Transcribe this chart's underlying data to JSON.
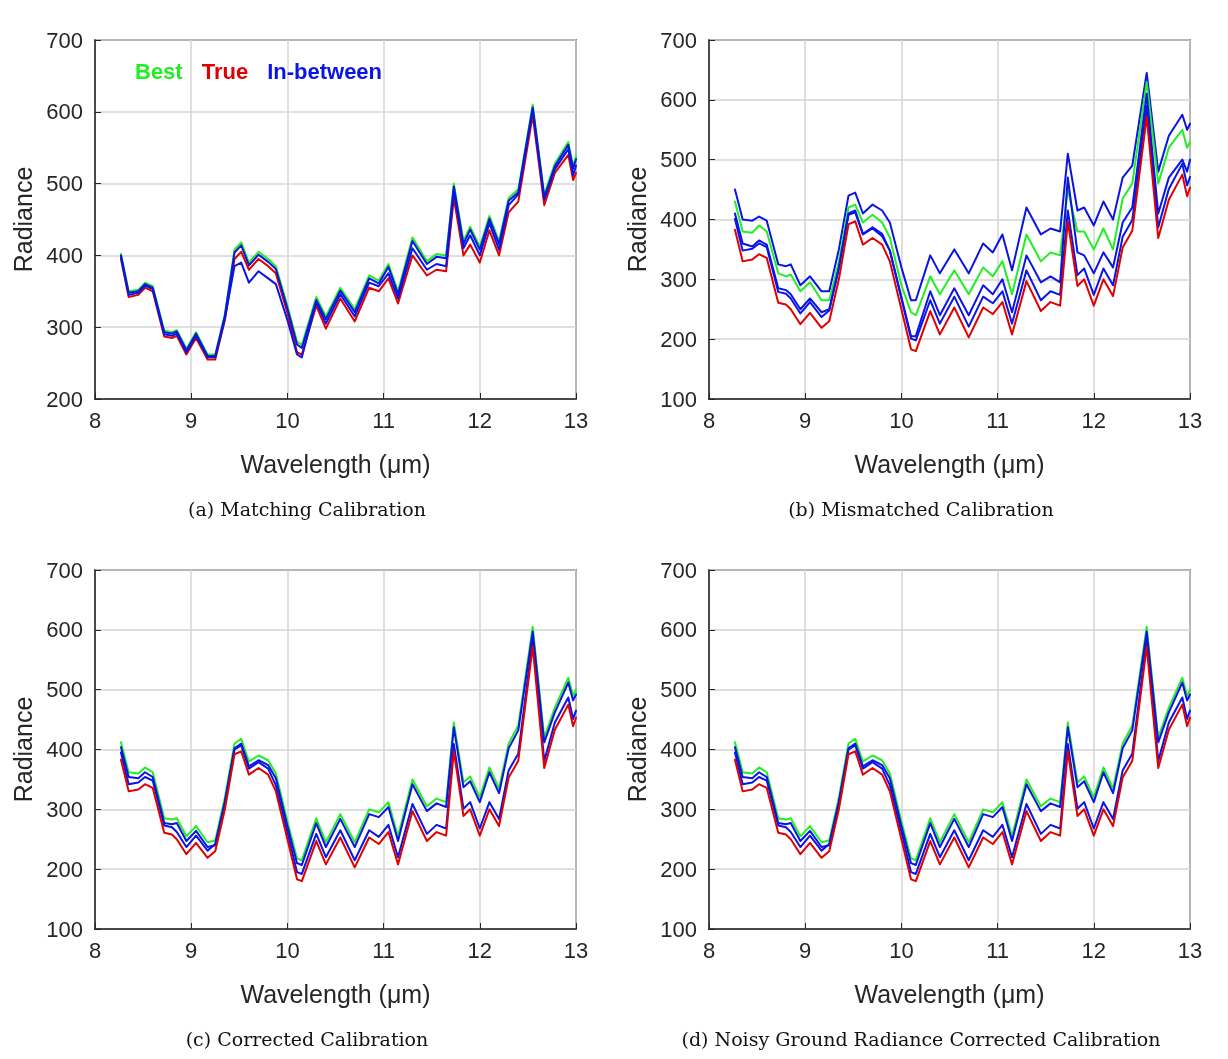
{
  "chart_data": [
    {
      "type": "line",
      "title": "(a) Matching Calibration",
      "xlabel": "Wavelength (μm)",
      "ylabel": "Radiance",
      "xlim": [
        8,
        13
      ],
      "xticks": [
        8,
        9,
        10,
        11,
        12,
        13
      ],
      "ylim": [
        200,
        700
      ],
      "yticks": [
        200,
        300,
        400,
        500,
        600,
        700
      ],
      "grid": true,
      "legend": "top left",
      "x": [
        8.27,
        8.35,
        8.45,
        8.52,
        8.6,
        8.72,
        8.8,
        8.85,
        8.95,
        9.05,
        9.17,
        9.25,
        9.35,
        9.45,
        9.52,
        9.6,
        9.7,
        9.8,
        9.88,
        10.0,
        10.1,
        10.15,
        10.3,
        10.4,
        10.55,
        10.7,
        10.85,
        10.95,
        11.05,
        11.15,
        11.3,
        11.45,
        11.55,
        11.65,
        11.73,
        11.83,
        11.9,
        12.0,
        12.1,
        12.2,
        12.3,
        12.4,
        12.55,
        12.67,
        12.78,
        12.92,
        12.97,
        13.0
      ],
      "series": [
        {
          "name": "Best",
          "color": "#22ee22",
          "values": [
            402,
            350,
            352,
            362,
            357,
            295,
            293,
            296,
            270,
            293,
            262,
            262,
            318,
            408,
            418,
            390,
            405,
            395,
            385,
            330,
            280,
            275,
            342,
            315,
            355,
            325,
            372,
            365,
            388,
            350,
            425,
            392,
            402,
            400,
            500,
            420,
            440,
            412,
            455,
            420,
            480,
            492,
            610,
            485,
            528,
            558,
            525,
            538
          ]
        },
        {
          "name": "True",
          "color": "#e00000",
          "values": [
            395,
            342,
            345,
            355,
            350,
            287,
            285,
            288,
            262,
            285,
            255,
            255,
            310,
            395,
            405,
            380,
            395,
            385,
            375,
            320,
            265,
            262,
            330,
            298,
            340,
            308,
            355,
            350,
            368,
            333,
            400,
            372,
            380,
            378,
            480,
            400,
            415,
            390,
            435,
            400,
            460,
            475,
            595,
            470,
            515,
            540,
            505,
            515
          ]
        },
        {
          "name": "In-between",
          "color": "#0a14e6",
          "values": [
            398,
            345,
            348,
            358,
            353,
            290,
            288,
            291,
            265,
            288,
            258,
            258,
            312,
            385,
            390,
            362,
            378,
            368,
            360,
            310,
            262,
            258,
            335,
            305,
            346,
            315,
            362,
            357,
            375,
            340,
            410,
            380,
            388,
            385,
            490,
            410,
            428,
            400,
            445,
            408,
            470,
            485,
            603,
            478,
            520,
            548,
            512,
            525
          ]
        },
        {
          "color": "#0a14e6",
          "values": [
            400,
            348,
            350,
            360,
            355,
            293,
            291,
            294,
            268,
            291,
            260,
            260,
            316,
            404,
            414,
            386,
            401,
            391,
            381,
            326,
            276,
            271,
            338,
            311,
            351,
            321,
            368,
            361,
            384,
            346,
            420,
            388,
            398,
            396,
            496,
            416,
            436,
            408,
            451,
            416,
            476,
            488,
            606,
            481,
            524,
            554,
            521,
            534
          ]
        }
      ]
    },
    {
      "type": "line",
      "title": "(b) Mismatched Calibration",
      "xlabel": "Wavelength (μm)",
      "ylabel": "Radiance",
      "xlim": [
        8,
        13
      ],
      "xticks": [
        8,
        9,
        10,
        11,
        12,
        13
      ],
      "ylim": [
        100,
        700
      ],
      "yticks": [
        100,
        200,
        300,
        400,
        500,
        600,
        700
      ],
      "grid": true,
      "x": [
        8.27,
        8.35,
        8.45,
        8.52,
        8.6,
        8.72,
        8.8,
        8.85,
        8.95,
        9.05,
        9.17,
        9.25,
        9.35,
        9.45,
        9.52,
        9.6,
        9.7,
        9.8,
        9.88,
        10.0,
        10.1,
        10.15,
        10.3,
        10.4,
        10.55,
        10.7,
        10.85,
        10.95,
        11.05,
        11.15,
        11.3,
        11.45,
        11.55,
        11.65,
        11.73,
        11.83,
        11.9,
        12.0,
        12.1,
        12.2,
        12.3,
        12.4,
        12.55,
        12.67,
        12.78,
        12.92,
        12.97,
        13.0
      ],
      "series": [
        {
          "color": "#0a14e6",
          "values": [
            450,
            400,
            398,
            405,
            398,
            325,
            322,
            325,
            290,
            305,
            280,
            280,
            350,
            440,
            445,
            410,
            425,
            415,
            395,
            320,
            265,
            265,
            340,
            310,
            350,
            310,
            360,
            345,
            375,
            315,
            420,
            375,
            385,
            380,
            510,
            415,
            420,
            390,
            430,
            400,
            470,
            490,
            645,
            480,
            540,
            575,
            550,
            560
          ]
        },
        {
          "color": "#22ee22",
          "values": [
            430,
            380,
            378,
            390,
            380,
            310,
            305,
            308,
            280,
            295,
            265,
            265,
            330,
            420,
            425,
            395,
            408,
            395,
            370,
            290,
            245,
            240,
            305,
            275,
            315,
            275,
            320,
            305,
            330,
            275,
            375,
            330,
            345,
            340,
            450,
            380,
            380,
            350,
            385,
            350,
            435,
            460,
            630,
            460,
            520,
            550,
            520,
            530
          ]
        },
        {
          "color": "#0a14e6",
          "values": [
            410,
            360,
            355,
            365,
            358,
            285,
            282,
            275,
            250,
            268,
            245,
            250,
            320,
            408,
            412,
            375,
            385,
            372,
            348,
            270,
            205,
            205,
            280,
            240,
            285,
            240,
            290,
            275,
            300,
            245,
            340,
            295,
            305,
            295,
            470,
            345,
            340,
            310,
            345,
            320,
            395,
            420,
            610,
            410,
            470,
            500,
            480,
            500
          ]
        },
        {
          "color": "#0a14e6",
          "values": [
            401,
            348,
            351,
            360,
            354,
            279,
            276,
            268,
            243,
            262,
            237,
            248,
            318,
            410,
            415,
            376,
            387,
            376,
            348,
            268,
            201,
            198,
            265,
            226,
            271,
            221,
            271,
            260,
            280,
            226,
            315,
            265,
            280,
            274,
            415,
            307,
            318,
            274,
            318,
            290,
            371,
            399,
            590,
            387,
            451,
            493,
            457,
            471
          ]
        },
        {
          "color": "#e00000",
          "values": [
            383,
            330,
            333,
            342,
            336,
            261,
            258,
            250,
            225,
            244,
            219,
            230,
            300,
            392,
            397,
            358,
            369,
            358,
            330,
            250,
            183,
            180,
            247,
            208,
            253,
            203,
            253,
            242,
            262,
            208,
            297,
            247,
            262,
            256,
            397,
            289,
            300,
            256,
            300,
            272,
            353,
            381,
            572,
            369,
            433,
            475,
            439,
            453
          ]
        }
      ]
    },
    {
      "type": "line",
      "title": "(c) Corrected Calibration",
      "xlabel": "Wavelength (μm)",
      "ylabel": "Radiance",
      "xlim": [
        8,
        13
      ],
      "xticks": [
        8,
        9,
        10,
        11,
        12,
        13
      ],
      "ylim": [
        100,
        700
      ],
      "yticks": [
        100,
        200,
        300,
        400,
        500,
        600,
        700
      ],
      "grid": true,
      "x": [
        8.27,
        8.35,
        8.45,
        8.52,
        8.6,
        8.72,
        8.8,
        8.85,
        8.95,
        9.05,
        9.17,
        9.25,
        9.35,
        9.45,
        9.52,
        9.6,
        9.7,
        9.8,
        9.88,
        10.0,
        10.1,
        10.15,
        10.3,
        10.4,
        10.55,
        10.7,
        10.85,
        10.95,
        11.05,
        11.15,
        11.3,
        11.45,
        11.55,
        11.65,
        11.73,
        11.83,
        11.9,
        12.0,
        12.1,
        12.2,
        12.3,
        12.4,
        12.55,
        12.67,
        12.78,
        12.92,
        12.97,
        13.0
      ],
      "series": [
        {
          "color": "#22ee22",
          "values": [
            412,
            362,
            360,
            370,
            362,
            285,
            283,
            285,
            255,
            272,
            245,
            248,
            320,
            410,
            418,
            380,
            390,
            382,
            360,
            280,
            218,
            215,
            285,
            245,
            292,
            245,
            300,
            295,
            312,
            255,
            350,
            305,
            318,
            312,
            445,
            345,
            355,
            320,
            370,
            335,
            410,
            440,
            605,
            420,
            470,
            520,
            490,
            500
          ]
        },
        {
          "color": "#0a14e6",
          "values": [
            404,
            354,
            352,
            362,
            354,
            277,
            275,
            277,
            247,
            264,
            237,
            240,
            312,
            402,
            410,
            372,
            382,
            374,
            352,
            272,
            210,
            207,
            277,
            237,
            284,
            237,
            292,
            287,
            304,
            247,
            342,
            297,
            310,
            304,
            437,
            337,
            347,
            312,
            362,
            327,
            402,
            432,
            597,
            412,
            462,
            512,
            482,
            492
          ]
        },
        {
          "color": "#0a14e6",
          "values": [
            395,
            342,
            345,
            354,
            348,
            273,
            270,
            262,
            237,
            256,
            231,
            242,
            312,
            400,
            407,
            368,
            379,
            368,
            340,
            262,
            195,
            192,
            259,
            220,
            265,
            215,
            265,
            254,
            274,
            220,
            309,
            259,
            274,
            268,
            409,
            301,
            312,
            268,
            312,
            284,
            365,
            393,
            584,
            381,
            445,
            487,
            451,
            465
          ]
        },
        {
          "color": "#e00000",
          "values": [
            383,
            330,
            333,
            342,
            336,
            261,
            258,
            250,
            225,
            244,
            219,
            230,
            300,
            392,
            397,
            358,
            369,
            358,
            330,
            250,
            183,
            180,
            247,
            208,
            253,
            203,
            253,
            242,
            262,
            208,
            297,
            247,
            262,
            256,
            397,
            289,
            300,
            256,
            300,
            272,
            353,
            381,
            572,
            369,
            433,
            475,
            439,
            453
          ]
        }
      ]
    },
    {
      "type": "line",
      "title": "(d) Noisy Ground Radiance Corrected Calibration",
      "xlabel": "Wavelength (μm)",
      "ylabel": "Radiance",
      "xlim": [
        8,
        13
      ],
      "xticks": [
        8,
        9,
        10,
        11,
        12,
        13
      ],
      "ylim": [
        100,
        700
      ],
      "yticks": [
        100,
        200,
        300,
        400,
        500,
        600,
        700
      ],
      "grid": true,
      "x": [
        8.27,
        8.35,
        8.45,
        8.52,
        8.6,
        8.72,
        8.8,
        8.85,
        8.95,
        9.05,
        9.17,
        9.25,
        9.35,
        9.45,
        9.52,
        9.6,
        9.7,
        9.8,
        9.88,
        10.0,
        10.1,
        10.15,
        10.3,
        10.4,
        10.55,
        10.7,
        10.85,
        10.95,
        11.05,
        11.15,
        11.3,
        11.45,
        11.55,
        11.65,
        11.73,
        11.83,
        11.9,
        12.0,
        12.1,
        12.2,
        12.3,
        12.4,
        12.55,
        12.67,
        12.78,
        12.92,
        12.97,
        13.0
      ],
      "series": [
        {
          "color": "#22ee22",
          "values": [
            412,
            362,
            360,
            370,
            362,
            285,
            283,
            285,
            255,
            272,
            245,
            248,
            320,
            410,
            418,
            380,
            390,
            382,
            360,
            280,
            218,
            215,
            285,
            245,
            292,
            245,
            300,
            295,
            312,
            255,
            350,
            305,
            318,
            312,
            445,
            345,
            355,
            320,
            370,
            335,
            410,
            440,
            605,
            420,
            470,
            520,
            490,
            500
          ]
        },
        {
          "color": "#0a14e6",
          "values": [
            404,
            354,
            352,
            362,
            354,
            277,
            275,
            277,
            247,
            264,
            237,
            240,
            312,
            402,
            410,
            372,
            382,
            374,
            352,
            272,
            210,
            207,
            277,
            237,
            284,
            237,
            292,
            287,
            304,
            247,
            342,
            297,
            310,
            304,
            437,
            337,
            347,
            312,
            362,
            327,
            402,
            432,
            597,
            412,
            462,
            512,
            482,
            492
          ]
        },
        {
          "color": "#0a14e6",
          "values": [
            395,
            342,
            345,
            354,
            348,
            273,
            270,
            262,
            237,
            256,
            231,
            242,
            312,
            400,
            407,
            368,
            379,
            368,
            340,
            262,
            195,
            192,
            259,
            220,
            265,
            215,
            265,
            254,
            274,
            220,
            309,
            259,
            274,
            268,
            409,
            301,
            312,
            268,
            312,
            284,
            365,
            393,
            584,
            381,
            445,
            487,
            451,
            465
          ]
        },
        {
          "color": "#e00000",
          "values": [
            383,
            330,
            333,
            342,
            336,
            261,
            258,
            250,
            225,
            244,
            219,
            230,
            300,
            392,
            397,
            358,
            369,
            358,
            330,
            250,
            183,
            180,
            247,
            208,
            253,
            203,
            253,
            242,
            262,
            208,
            297,
            247,
            262,
            256,
            397,
            289,
            300,
            256,
            300,
            272,
            353,
            381,
            572,
            369,
            433,
            475,
            439,
            453
          ]
        }
      ]
    }
  ]
}
